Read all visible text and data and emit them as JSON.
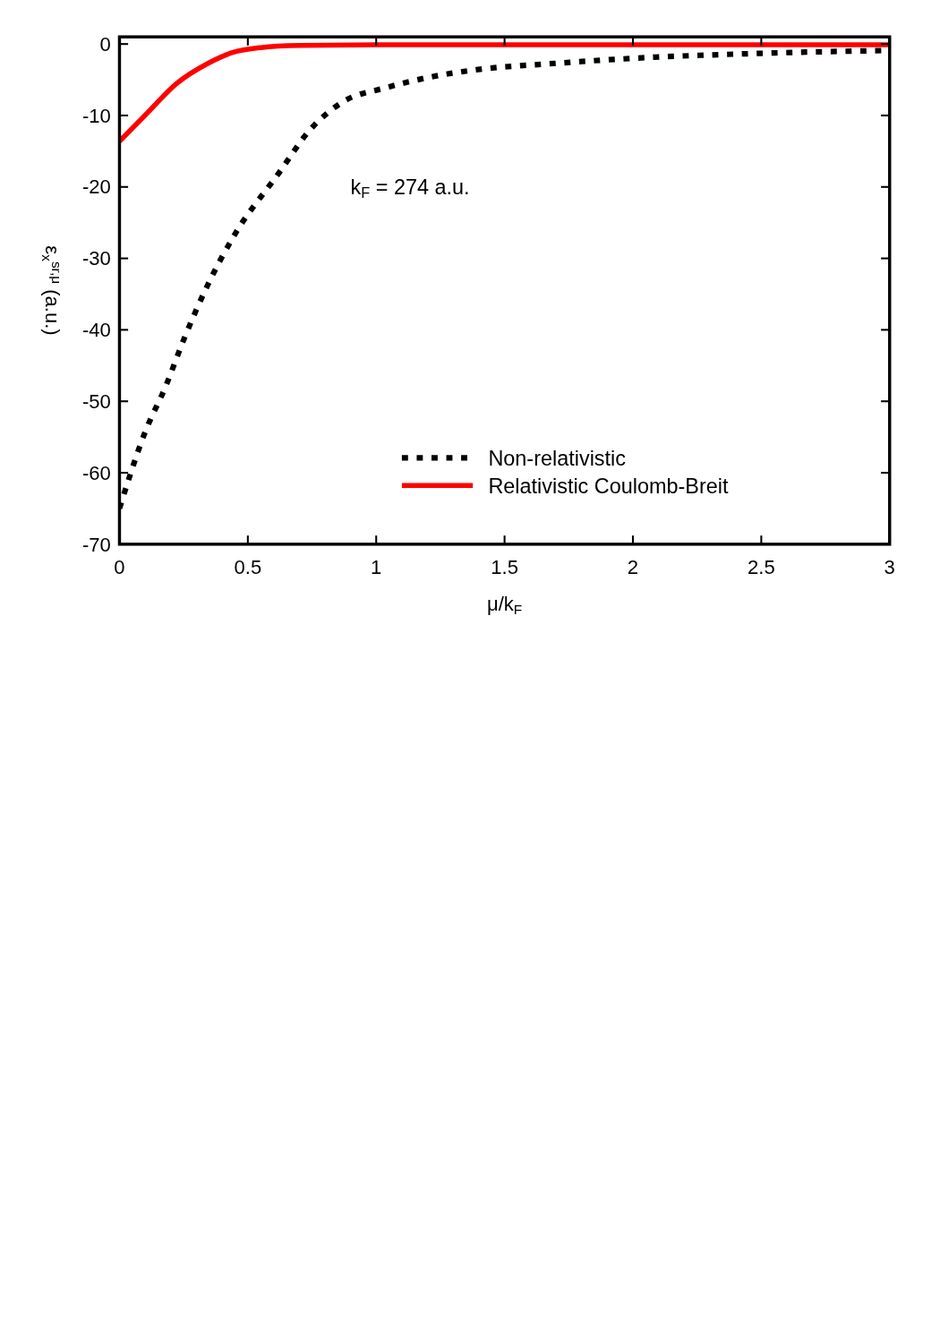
{
  "chart_data": {
    "type": "line",
    "xlabel": "μ/k$_{F}$",
    "ylabel": "ε$_{x}$$^{sr,μ}$ (a.u.)",
    "xlim": [
      0,
      3
    ],
    "xticks": [
      0,
      0.5,
      1,
      1.5,
      2,
      2.5,
      3
    ],
    "ylim": [
      -70,
      1
    ],
    "yticks": [
      -70,
      -60,
      -50,
      -40,
      -30,
      -20,
      -10,
      0
    ],
    "legend": "bottom right",
    "grid": false,
    "annotations": [
      "k$_{F}$ = 274 a.u."
    ],
    "series": [
      {
        "name": "Non-relativistic",
        "color": "#000000",
        "line_style": "dotted",
        "x": [
          0,
          0.1,
          0.18,
          0.25,
          0.34,
          0.45,
          0.62,
          0.74,
          0.87,
          1.04,
          1.2,
          1.39,
          1.7,
          2,
          2.5,
          3
        ],
        "values": [
          -65,
          -54.3,
          -47.9,
          -41.4,
          -34,
          -26.6,
          -18.1,
          -12.1,
          -8.1,
          -6.1,
          -4.7,
          -3.6,
          -2.7,
          -2,
          -1.3,
          -0.9
        ]
      },
      {
        "name": "Relativistic Coulomb-Breit",
        "color": "#ff0000",
        "line_style": "solid",
        "x": [
          0,
          0.11,
          0.22,
          0.345,
          0.44,
          0.55,
          0.7,
          1,
          2,
          3
        ],
        "values": [
          -13.6,
          -9.6,
          -5.6,
          -2.7,
          -1.2,
          -0.5,
          -0.2,
          -0.1,
          -0.1,
          -0.1
        ]
      }
    ]
  }
}
